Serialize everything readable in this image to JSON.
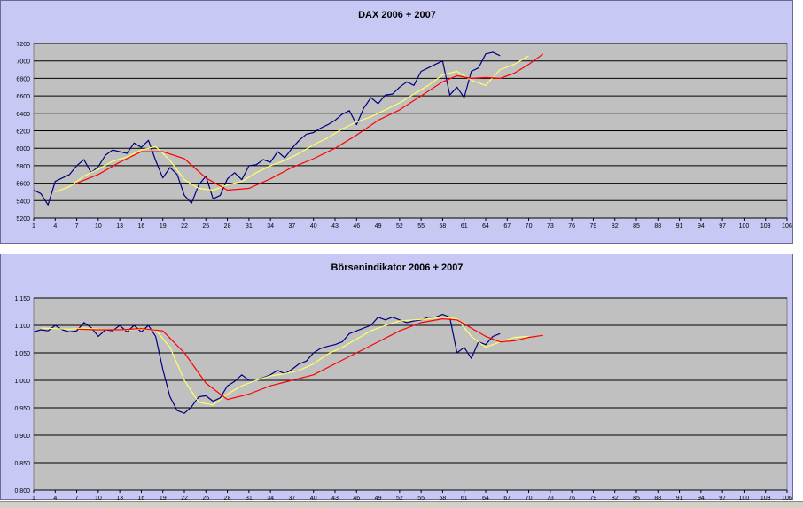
{
  "charts": {
    "dax": {
      "title": "DAX 2006 + 2007"
    },
    "indicator": {
      "title": "Börsenindikator 2006 + 2007"
    }
  },
  "colors": {
    "panel_bg": "#c8c8f4",
    "plot_bg": "#c0c0c0",
    "series_blue": "#000080",
    "series_yellow": "#ffff66",
    "series_red": "#ff0000"
  },
  "chart_data": [
    {
      "type": "line",
      "title": "DAX 2006 + 2007",
      "xlabel": "",
      "ylabel": "",
      "xlim": [
        1,
        106
      ],
      "ylim": [
        5200,
        7200
      ],
      "grid": true,
      "legend": "none",
      "x_ticks": [
        "1",
        "4",
        "7",
        "10",
        "13",
        "16",
        "19",
        "22",
        "25",
        "28",
        "31",
        "34",
        "37",
        "40",
        "43",
        "46",
        "49",
        "52",
        "55",
        "58",
        "61",
        "64",
        "67",
        "70",
        "73",
        "76",
        "79",
        "82",
        "85",
        "88",
        "91",
        "94",
        "97",
        "100",
        "103",
        "106"
      ],
      "y_ticks": [
        "5200",
        "5400",
        "5600",
        "5800",
        "6000",
        "6200",
        "6400",
        "6600",
        "6800",
        "7000",
        "7200"
      ],
      "series": [
        {
          "color": "#000080",
          "x": [
            1,
            2,
            3,
            4,
            5,
            6,
            7,
            8,
            9,
            10,
            11,
            12,
            13,
            14,
            15,
            16,
            17,
            18,
            19,
            20,
            21,
            22,
            23,
            24,
            25,
            26,
            27,
            28,
            29,
            30,
            31,
            32,
            33,
            34,
            35,
            36,
            37,
            38,
            39,
            40,
            41,
            42,
            43,
            44,
            45,
            46,
            47,
            48,
            49,
            50,
            51,
            52,
            53,
            54,
            55,
            56,
            57,
            58,
            59,
            60,
            61,
            62,
            63,
            64,
            65,
            66
          ],
          "y": [
            5520,
            5480,
            5350,
            5620,
            5660,
            5700,
            5800,
            5870,
            5720,
            5790,
            5920,
            5980,
            5960,
            5940,
            6060,
            6010,
            6090,
            5860,
            5660,
            5780,
            5700,
            5460,
            5370,
            5580,
            5680,
            5420,
            5460,
            5650,
            5720,
            5640,
            5800,
            5810,
            5870,
            5840,
            5960,
            5890,
            6000,
            6090,
            6160,
            6180,
            6230,
            6270,
            6320,
            6390,
            6430,
            6270,
            6460,
            6580,
            6510,
            6610,
            6620,
            6700,
            6760,
            6720,
            6880,
            6920,
            6960,
            7000,
            6610,
            6700,
            6580,
            6880,
            6920,
            7080,
            7100,
            7060
          ]
        },
        {
          "color": "#ffff66",
          "x": [
            4,
            6,
            8,
            10,
            12,
            14,
            16,
            18,
            20,
            22,
            24,
            26,
            28,
            30,
            32,
            34,
            36,
            38,
            40,
            42,
            44,
            46,
            48,
            50,
            52,
            54,
            56,
            58,
            60,
            62,
            64,
            66,
            68,
            70
          ],
          "y": [
            5500,
            5560,
            5680,
            5760,
            5850,
            5900,
            5980,
            6020,
            5860,
            5640,
            5540,
            5520,
            5580,
            5620,
            5720,
            5800,
            5860,
            5940,
            6040,
            6120,
            6220,
            6300,
            6360,
            6440,
            6520,
            6620,
            6720,
            6840,
            6880,
            6780,
            6720,
            6900,
            6960,
            7060
          ]
        },
        {
          "color": "#ff0000",
          "x": [
            7,
            10,
            13,
            16,
            19,
            22,
            25,
            28,
            31,
            34,
            37,
            40,
            43,
            46,
            49,
            52,
            55,
            58,
            60,
            62,
            64,
            66,
            68,
            70,
            72
          ],
          "y": [
            5600,
            5700,
            5840,
            5960,
            5960,
            5880,
            5660,
            5520,
            5540,
            5650,
            5780,
            5880,
            6000,
            6150,
            6320,
            6440,
            6600,
            6760,
            6830,
            6800,
            6810,
            6800,
            6860,
            6960,
            7080
          ]
        }
      ]
    },
    {
      "type": "line",
      "title": "Börsenindikator 2006 + 2007",
      "xlabel": "",
      "ylabel": "",
      "xlim": [
        1,
        106
      ],
      "ylim": [
        0.8,
        1.15
      ],
      "grid": true,
      "legend": "none",
      "x_ticks": [
        "1",
        "4",
        "7",
        "10",
        "13",
        "16",
        "19",
        "22",
        "25",
        "28",
        "31",
        "34",
        "37",
        "40",
        "43",
        "46",
        "49",
        "52",
        "55",
        "58",
        "61",
        "64",
        "67",
        "70",
        "73",
        "76",
        "79",
        "82",
        "85",
        "88",
        "91",
        "94",
        "97",
        "100",
        "103",
        "106"
      ],
      "y_ticks": [
        "0,800",
        "0,850",
        "0,900",
        "0,950",
        "1,000",
        "1,050",
        "1,100",
        "1,150"
      ],
      "series": [
        {
          "color": "#000080",
          "x": [
            1,
            2,
            3,
            4,
            5,
            6,
            7,
            8,
            9,
            10,
            11,
            12,
            13,
            14,
            15,
            16,
            17,
            18,
            19,
            20,
            21,
            22,
            23,
            24,
            25,
            26,
            27,
            28,
            29,
            30,
            31,
            32,
            33,
            34,
            35,
            36,
            37,
            38,
            39,
            40,
            41,
            42,
            43,
            44,
            45,
            46,
            47,
            48,
            49,
            50,
            51,
            52,
            53,
            54,
            55,
            56,
            57,
            58,
            59,
            60,
            61,
            62,
            63,
            64,
            65,
            66
          ],
          "y": [
            1.088,
            1.092,
            1.09,
            1.1,
            1.092,
            1.088,
            1.09,
            1.105,
            1.096,
            1.08,
            1.092,
            1.09,
            1.1,
            1.088,
            1.1,
            1.088,
            1.1,
            1.08,
            1.02,
            0.97,
            0.945,
            0.94,
            0.952,
            0.97,
            0.972,
            0.962,
            0.968,
            0.99,
            0.998,
            1.01,
            1.0,
            1.0,
            1.005,
            1.01,
            1.018,
            1.012,
            1.02,
            1.03,
            1.035,
            1.05,
            1.058,
            1.062,
            1.065,
            1.07,
            1.085,
            1.09,
            1.095,
            1.1,
            1.115,
            1.11,
            1.115,
            1.11,
            1.105,
            1.108,
            1.11,
            1.115,
            1.115,
            1.12,
            1.115,
            1.05,
            1.06,
            1.04,
            1.07,
            1.065,
            1.08,
            1.085
          ]
        },
        {
          "color": "#ffff66",
          "x": [
            2,
            4,
            6,
            8,
            10,
            12,
            14,
            16,
            18,
            20,
            22,
            24,
            26,
            28,
            30,
            32,
            34,
            36,
            38,
            40,
            42,
            44,
            46,
            48,
            50,
            52,
            54,
            56,
            58,
            60,
            62,
            64,
            66,
            68,
            70
          ],
          "y": [
            1.095,
            1.094,
            1.093,
            1.095,
            1.093,
            1.092,
            1.092,
            1.093,
            1.092,
            1.06,
            1.0,
            0.96,
            0.955,
            0.975,
            0.99,
            1.0,
            1.008,
            1.012,
            1.018,
            1.03,
            1.048,
            1.06,
            1.075,
            1.09,
            1.1,
            1.108,
            1.11,
            1.112,
            1.115,
            1.112,
            1.08,
            1.06,
            1.07,
            1.078,
            1.08
          ]
        },
        {
          "color": "#ff0000",
          "x": [
            7,
            10,
            13,
            16,
            19,
            22,
            25,
            28,
            31,
            34,
            37,
            40,
            43,
            46,
            49,
            52,
            55,
            58,
            60,
            62,
            64,
            66,
            68,
            70,
            72
          ],
          "y": [
            1.093,
            1.092,
            1.092,
            1.094,
            1.09,
            1.05,
            0.995,
            0.965,
            0.975,
            0.99,
            1.0,
            1.01,
            1.03,
            1.05,
            1.07,
            1.09,
            1.105,
            1.112,
            1.11,
            1.095,
            1.08,
            1.07,
            1.072,
            1.078,
            1.082
          ]
        }
      ]
    }
  ]
}
